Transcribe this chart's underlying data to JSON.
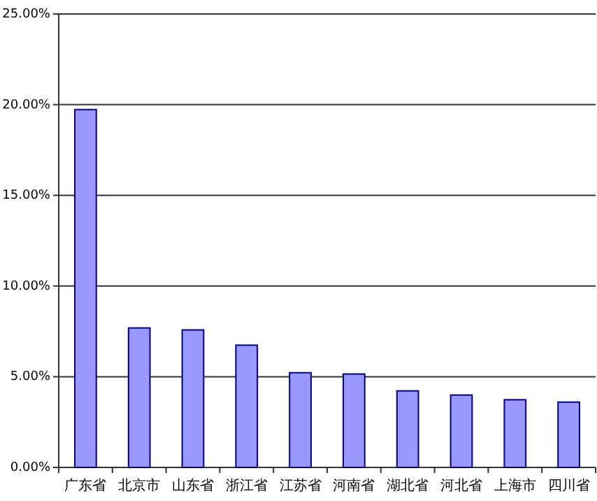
{
  "chart_data": {
    "type": "bar",
    "categories": [
      "广东省",
      "北京市",
      "山东省",
      "浙江省",
      "江苏省",
      "河南省",
      "湖北省",
      "河北省",
      "上海市",
      "四川省"
    ],
    "values": [
      19.73,
      7.69,
      7.58,
      6.74,
      5.22,
      5.15,
      4.22,
      3.99,
      3.73,
      3.6
    ],
    "color": "#9999ff",
    "ylim": [
      0,
      25
    ],
    "yticks": [
      {
        "value": 0,
        "label": "0.00%"
      },
      {
        "value": 5,
        "label": "5.00%"
      },
      {
        "value": 10,
        "label": "10.00%"
      },
      {
        "value": 15,
        "label": "15.00%"
      },
      {
        "value": 20,
        "label": "20.00%"
      },
      {
        "value": 25,
        "label": "25.00%"
      }
    ],
    "grid": "y"
  }
}
